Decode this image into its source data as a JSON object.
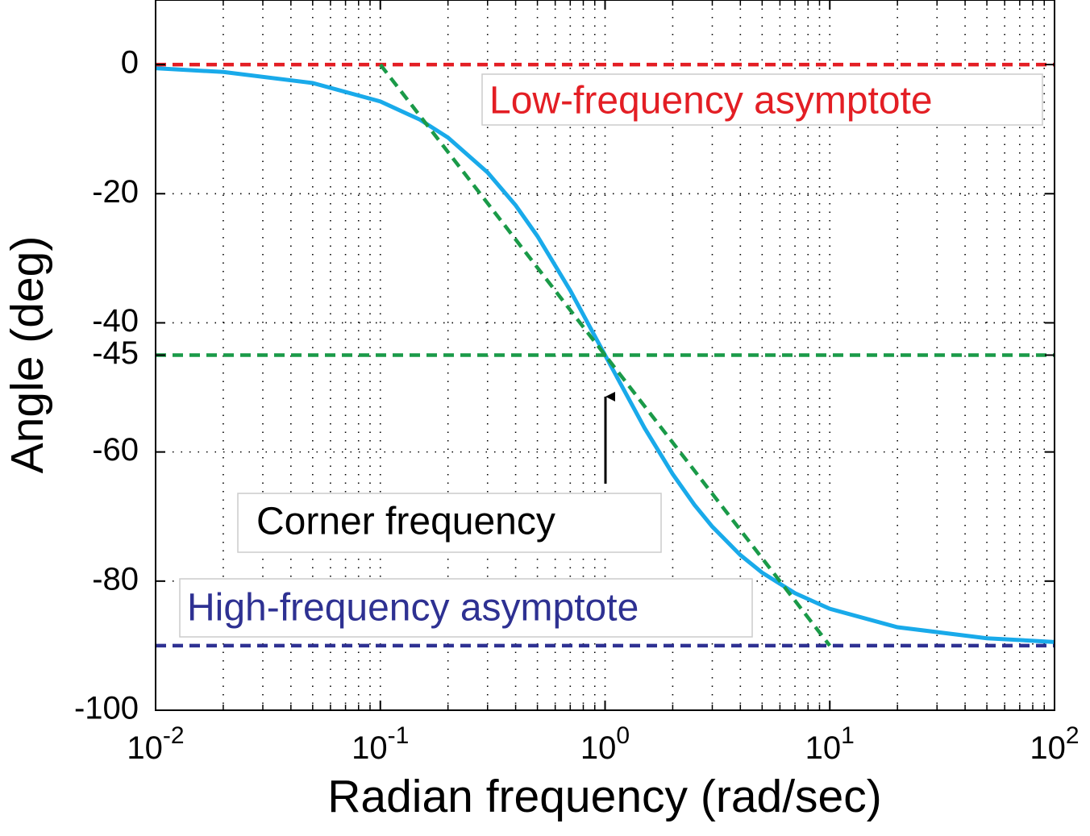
{
  "chart_data": {
    "type": "line",
    "xlabel": "Radian frequency (rad/sec)",
    "ylabel": "Angle (deg)",
    "xscale": "log",
    "xlim": [
      0.01,
      100
    ],
    "ylim": [
      -100,
      10
    ],
    "xticks": [
      {
        "value": 0.01,
        "label": "10^-2"
      },
      {
        "value": 0.1,
        "label": "10^-1"
      },
      {
        "value": 1,
        "label": "10^0"
      },
      {
        "value": 10,
        "label": "10^1"
      },
      {
        "value": 100,
        "label": "10^2"
      }
    ],
    "yticks": [
      0,
      -20,
      -40,
      -45,
      -60,
      -80,
      -100
    ],
    "grid": true,
    "minor_grid": true,
    "series": [
      {
        "color": "#19aaea",
        "dashed": false,
        "x": [
          0.01,
          0.02,
          0.05,
          0.1,
          0.15,
          0.2,
          0.3,
          0.4,
          0.5,
          0.7,
          1,
          1.5,
          2,
          2.5,
          3,
          4,
          5,
          7,
          10,
          20,
          50,
          100
        ],
        "values": [
          -0.57,
          -1.15,
          -2.86,
          -5.71,
          -8.53,
          -11.31,
          -16.7,
          -21.8,
          -26.57,
          -34.99,
          -45,
          -56.31,
          -63.43,
          -68.2,
          -71.57,
          -75.96,
          -78.69,
          -81.87,
          -84.29,
          -87.14,
          -88.85,
          -89.43
        ]
      },
      {
        "color": "#e31e24",
        "dashed": true,
        "x": [
          0.01,
          100
        ],
        "values": [
          0,
          0
        ]
      },
      {
        "color": "#2e3192",
        "dashed": true,
        "x": [
          0.01,
          100
        ],
        "values": [
          -90,
          -90
        ]
      },
      {
        "color": "#1a9a48",
        "dashed": true,
        "x": [
          0.1,
          10
        ],
        "values": [
          0,
          -90
        ]
      },
      {
        "color": "#1a9a48",
        "dashed": true,
        "x": [
          0.01,
          100
        ],
        "values": [
          -45,
          -45
        ]
      }
    ],
    "annotations": [
      {
        "text": "Low-frequency asymptote",
        "color": "#e31e24"
      },
      {
        "text": "Corner frequency",
        "color": "#000000"
      },
      {
        "text": "High-frequency asymptote",
        "color": "#2e3192"
      }
    ]
  }
}
